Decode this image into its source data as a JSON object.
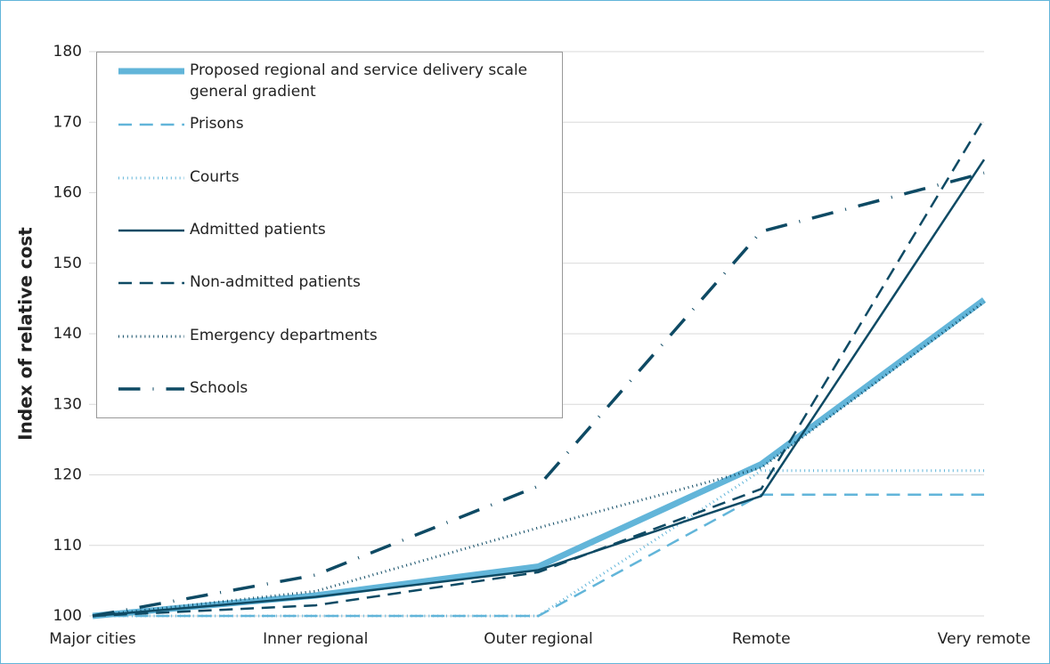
{
  "chart_data": {
    "type": "line",
    "y_label": "Index of relative cost",
    "categories": [
      "Major cities",
      "Inner regional",
      "Outer regional",
      "Remote",
      "Very remote"
    ],
    "ylim": [
      100,
      180
    ],
    "yticks": [
      100,
      110,
      120,
      130,
      140,
      150,
      160,
      170,
      180
    ],
    "grid": true,
    "legend": "upper left",
    "series": [
      {
        "name": "Proposed regional and service delivery scale general gradient",
        "color": "#62b5d9",
        "linestyle": "solid",
        "linewidth": 7,
        "values": [
          100,
          102.9,
          107,
          121.5,
          144.8
        ]
      },
      {
        "name": "Prisons",
        "color": "#62b5d9",
        "linestyle": "dashed",
        "linewidth": 2.5,
        "values": [
          100,
          100,
          100,
          117.2,
          117.2
        ]
      },
      {
        "name": "Courts",
        "color": "#62b5d9",
        "linestyle": "dotted",
        "linewidth": 3,
        "values": [
          100,
          100,
          100,
          120.6,
          120.6
        ]
      },
      {
        "name": "Admitted patients",
        "color": "#0e4a64",
        "linestyle": "solid",
        "linewidth": 2.5,
        "values": [
          100,
          102.7,
          106.5,
          117,
          164.7
        ]
      },
      {
        "name": "Non-admitted patients",
        "color": "#0e4a64",
        "linestyle": "dashed",
        "linewidth": 2.5,
        "values": [
          100,
          101.5,
          106.2,
          118,
          170.5
        ]
      },
      {
        "name": "Emergency departments",
        "color": "#0e4a64",
        "linestyle": "dotted",
        "linewidth": 3,
        "values": [
          100,
          103.5,
          112.5,
          121,
          144.5
        ]
      },
      {
        "name": "Schools",
        "color": "#0e4a64",
        "linestyle": "dashdot",
        "linewidth": 3.5,
        "values": [
          100,
          105.8,
          118.4,
          154.5,
          162.8
        ]
      }
    ]
  }
}
